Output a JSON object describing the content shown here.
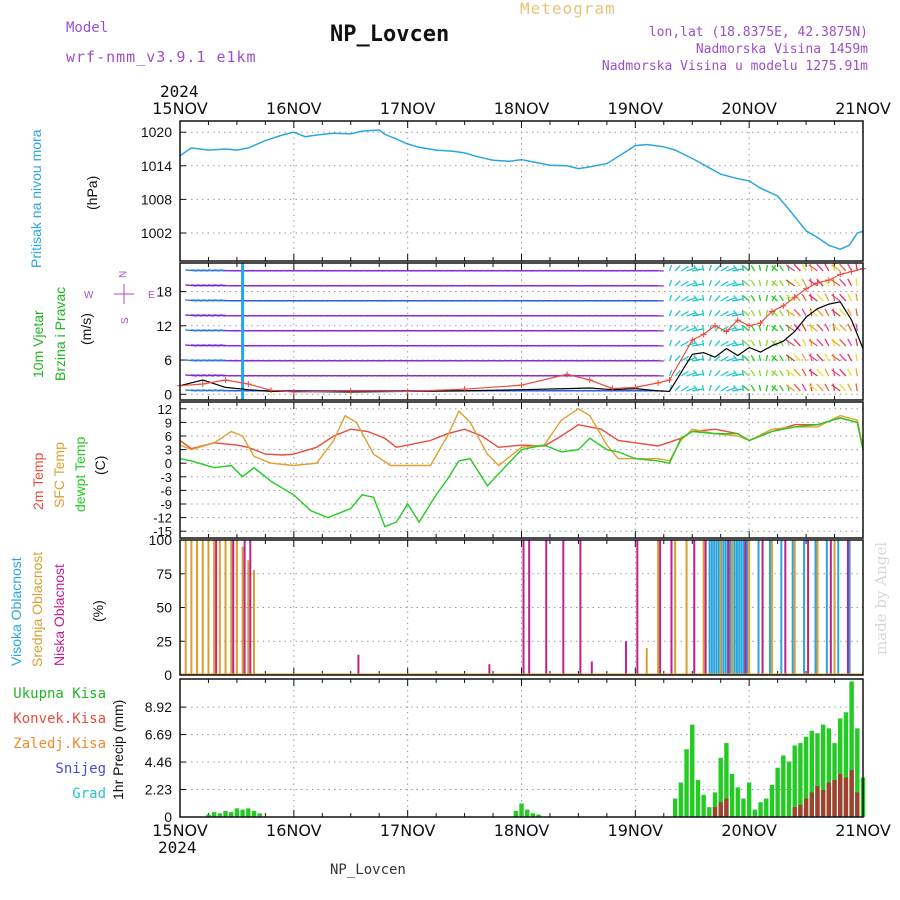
{
  "header": {
    "model_label": "Model",
    "model_name": "wrf-nmm_v3.9.1  e1km",
    "title": "NP_Lovcen",
    "meteogram_label": "Meteogram",
    "lonlat": "lon,lat (18.8375E, 42.3875N)",
    "altitude": "Nadmorska Visina 1459m",
    "model_altitude": "Nadmorska Visina u modelu 1275.91m",
    "year_top": "2024",
    "year_bottom": "2024",
    "footer": "NP_Lovcen",
    "signature": "made by Angel"
  },
  "colors": {
    "pressure": "#2aa6dd",
    "wind_label": "#22b522",
    "temp2m": "#e94b3c",
    "sfc": "#e0a030",
    "dewpt": "#22cc22",
    "high_cloud": "#2aa6dd",
    "mid_cloud": "#d8a030",
    "low_cloud": "#c02090",
    "compass": "#a64ec8",
    "header_purple": "#9b4fc9",
    "header_gold": "#e8c47a"
  },
  "chart_data": [
    {
      "type": "line",
      "panel": "pressure",
      "ylabel_lines": [
        "Pritisak na nivou mora",
        "(hPa)"
      ],
      "ylim": [
        997,
        1022
      ],
      "yticks": [
        "1020",
        "1014",
        "1008",
        "1002"
      ],
      "x_ticks": [
        "15NOV",
        "16NOV",
        "17NOV",
        "18NOV",
        "19NOV",
        "20NOV",
        "21NOV"
      ],
      "x_range_days": [
        0,
        6
      ],
      "series": [
        {
          "x": [
            0,
            0.1,
            0.25,
            0.4,
            0.5,
            0.6,
            0.75,
            0.9,
            1.0,
            1.1,
            1.2,
            1.35,
            1.5,
            1.6,
            1.75,
            1.8,
            1.9,
            2.0,
            2.1,
            2.25,
            2.4,
            2.5,
            2.6,
            2.75,
            2.9,
            3.0,
            3.1,
            3.25,
            3.4,
            3.5,
            3.6,
            3.75,
            3.9,
            4.0,
            4.1,
            4.25,
            4.35,
            4.5,
            4.6,
            4.75,
            4.9,
            5.0,
            5.1,
            5.25,
            5.35,
            5.5,
            5.6,
            5.7,
            5.8,
            5.88,
            5.95,
            6.0
          ],
          "values": [
            1015.8,
            1017.2,
            1016.8,
            1017.0,
            1016.8,
            1017.2,
            1018.5,
            1019.5,
            1020.0,
            1019.2,
            1019.5,
            1019.8,
            1019.7,
            1020.2,
            1020.4,
            1019.6,
            1018.8,
            1017.9,
            1017.3,
            1016.8,
            1016.6,
            1016.3,
            1015.7,
            1015.0,
            1014.8,
            1015.1,
            1014.7,
            1014.1,
            1014.0,
            1013.5,
            1013.8,
            1014.4,
            1016.3,
            1017.6,
            1017.8,
            1017.4,
            1016.8,
            1015.3,
            1014.2,
            1012.5,
            1011.7,
            1011.3,
            1010.0,
            1008.6,
            1006.2,
            1002.4,
            1001.2,
            999.8,
            999.1,
            999.8,
            1002.0,
            1002.3
          ]
        }
      ]
    },
    {
      "type": "line",
      "panel": "wind",
      "ylabel_lines": [
        "10m Vjetar",
        "Brzina i Pravac",
        "(m/s)"
      ],
      "compass": [
        "N",
        "E",
        "S",
        "W"
      ],
      "ylim": [
        -1,
        23
      ],
      "yticks": [
        "18",
        "12",
        "6",
        "0"
      ],
      "series": [
        {
          "name": "",
          "color": "#000000",
          "x": [
            0,
            0.2,
            0.4,
            0.6,
            0.8,
            1.0,
            1.5,
            2.0,
            2.5,
            3.0,
            3.4,
            3.6,
            3.8,
            4.0,
            4.2,
            4.3,
            4.5,
            4.6,
            4.7,
            4.8,
            4.9,
            5.0,
            5.1,
            5.2,
            5.3,
            5.4,
            5.5,
            5.6,
            5.7,
            5.8,
            5.9,
            6.0
          ],
          "values": [
            1.5,
            2.5,
            1.2,
            0.8,
            0.5,
            0.5,
            0.4,
            0.5,
            0.6,
            0.8,
            1.0,
            1.1,
            0.8,
            1.0,
            0.6,
            0.5,
            7.0,
            7.3,
            6.5,
            8.0,
            6.8,
            8.2,
            7.4,
            8.5,
            9.3,
            11.0,
            13.5,
            15.0,
            15.8,
            16.2,
            13.0,
            8.0
          ]
        },
        {
          "name": "",
          "color": "#e94b3c",
          "x": [
            0,
            0.2,
            0.4,
            0.6,
            0.8,
            1.0,
            1.5,
            2.0,
            2.5,
            3.0,
            3.4,
            3.6,
            3.8,
            4.0,
            4.2,
            4.3,
            4.5,
            4.6,
            4.7,
            4.8,
            4.9,
            5.0,
            5.1,
            5.2,
            5.3,
            5.4,
            5.5,
            5.6,
            5.7,
            5.8,
            5.9,
            6.0
          ],
          "values": [
            1.5,
            1.8,
            2.5,
            1.8,
            0.7,
            0.4,
            0.6,
            0.5,
            0.9,
            1.6,
            3.5,
            2.5,
            1.0,
            1.2,
            2.0,
            2.5,
            9.5,
            10.5,
            12.0,
            11.0,
            13.0,
            12.0,
            12.5,
            14.5,
            15.5,
            17.0,
            18.5,
            19.5,
            20.0,
            21.0,
            21.5,
            22.0
          ]
        }
      ]
    },
    {
      "type": "line",
      "panel": "temperature",
      "ylabel_lines": [
        "2m Temp",
        "SFC Temp",
        "dewpt Temp",
        "(C)"
      ],
      "ylim": [
        -16.5,
        13.5
      ],
      "yticks": [
        "12",
        "9",
        "6",
        "3",
        "0",
        "-3",
        "-6",
        "-9",
        "-12",
        "-15"
      ],
      "series": [
        {
          "name": "2m Temp",
          "color": "#e94b3c",
          "x": [
            0,
            0.1,
            0.3,
            0.5,
            0.6,
            0.75,
            0.9,
            1.0,
            1.2,
            1.35,
            1.5,
            1.65,
            1.8,
            1.9,
            2.0,
            2.2,
            2.35,
            2.5,
            2.65,
            2.8,
            3.0,
            3.2,
            3.35,
            3.5,
            3.7,
            3.85,
            4.0,
            4.2,
            4.4,
            4.5,
            4.7,
            4.9,
            5.0,
            5.2,
            5.4,
            5.6,
            5.8,
            5.95,
            6.0
          ],
          "values": [
            5,
            3.2,
            4.5,
            4.0,
            3.5,
            2.0,
            1.8,
            2.0,
            3.5,
            6.0,
            7.5,
            7.0,
            5.5,
            3.5,
            4.0,
            5.0,
            6.5,
            7.5,
            6.0,
            3.5,
            4.0,
            3.8,
            6.0,
            8.5,
            7.5,
            5.0,
            4.5,
            3.8,
            5.5,
            7.0,
            7.5,
            6.5,
            5.0,
            7.0,
            8.5,
            8.5,
            10.0,
            9.0,
            3.0
          ]
        },
        {
          "name": "SFC Temp",
          "color": "#e0a030",
          "x": [
            0,
            0.1,
            0.3,
            0.45,
            0.55,
            0.65,
            0.8,
            1.0,
            1.2,
            1.35,
            1.45,
            1.55,
            1.7,
            1.85,
            2.0,
            2.2,
            2.35,
            2.45,
            2.55,
            2.7,
            2.8,
            3.0,
            3.2,
            3.35,
            3.5,
            3.6,
            3.75,
            3.85,
            4.0,
            4.2,
            4.3,
            4.4,
            4.5,
            4.7,
            4.9,
            5.0,
            5.2,
            5.4,
            5.6,
            5.8,
            5.95,
            6.0
          ],
          "values": [
            4,
            3.0,
            4.5,
            7.0,
            6.0,
            1.5,
            0.0,
            -0.5,
            0.0,
            5.0,
            10.5,
            9.0,
            2.0,
            -0.5,
            -0.5,
            -0.5,
            6.0,
            11.5,
            9.0,
            2.0,
            -0.5,
            3.5,
            4.0,
            9.5,
            12.0,
            10.5,
            4.0,
            1.0,
            1.0,
            1.0,
            0.5,
            5.0,
            7.5,
            6.5,
            6.0,
            5.0,
            7.5,
            8.0,
            8.0,
            10.5,
            9.5,
            3.5
          ]
        },
        {
          "name": "dewpt Temp",
          "color": "#22cc22",
          "x": [
            0,
            0.1,
            0.3,
            0.45,
            0.55,
            0.65,
            0.8,
            1.0,
            1.15,
            1.3,
            1.5,
            1.6,
            1.7,
            1.8,
            1.9,
            2.0,
            2.1,
            2.25,
            2.35,
            2.45,
            2.55,
            2.7,
            2.85,
            3.0,
            3.2,
            3.35,
            3.5,
            3.6,
            3.75,
            3.85,
            4.0,
            4.2,
            4.3,
            4.4,
            4.5,
            4.7,
            4.9,
            5.0,
            5.2,
            5.4,
            5.6,
            5.8,
            5.95,
            6.0
          ],
          "values": [
            1.0,
            0.5,
            -1.0,
            -0.5,
            -3.0,
            -1.0,
            -4.0,
            -7.0,
            -10.5,
            -12.0,
            -10.0,
            -7.0,
            -7.5,
            -14.0,
            -13.0,
            -9.0,
            -13.0,
            -7.0,
            -3.5,
            0.5,
            1.0,
            -5.0,
            -1.0,
            3.0,
            4.0,
            2.5,
            3.0,
            5.5,
            3.0,
            2.5,
            1.0,
            0.5,
            0.0,
            5.5,
            7.0,
            6.5,
            6.5,
            5.0,
            7.0,
            8.0,
            8.5,
            10.0,
            9.0,
            3.0
          ]
        }
      ]
    },
    {
      "type": "bar",
      "panel": "cloud",
      "ylabel_lines": [
        "Visoka Oblacnost",
        "Srednja Oblacnost",
        "Niska Oblacnost",
        "(%)"
      ],
      "ylim": [
        0,
        100
      ],
      "yticks": [
        "100",
        "75",
        "50",
        "25",
        "0"
      ],
      "series": [
        {
          "name": "Visoka Oblacnost",
          "color": "#2aa6dd",
          "x": [
            4.67,
            4.69,
            4.71,
            4.73,
            4.75,
            4.77,
            4.79,
            4.81,
            4.83,
            4.85,
            4.87,
            4.89,
            4.91,
            4.93,
            4.95,
            4.97,
            5.0,
            5.1,
            5.2,
            5.3,
            5.4,
            5.5,
            5.6,
            5.7,
            5.8,
            5.9
          ],
          "values": [
            100,
            100,
            100,
            100,
            100,
            100,
            100,
            100,
            100,
            100,
            100,
            100,
            100,
            100,
            100,
            100,
            100,
            100,
            100,
            100,
            100,
            100,
            100,
            100,
            100,
            100
          ]
        },
        {
          "name": "Srednja Oblacnost",
          "color": "#d8a030",
          "x": [
            0.05,
            0.1,
            0.15,
            0.2,
            0.25,
            0.3,
            0.35,
            0.4,
            0.45,
            0.5,
            0.55,
            0.6,
            0.65,
            4.1,
            4.2,
            4.35,
            4.45,
            4.6,
            4.75,
            4.85,
            5.0,
            5.2,
            5.4,
            5.6,
            5.75
          ],
          "values": [
            100,
            100,
            100,
            100,
            100,
            100,
            100,
            100,
            100,
            100,
            95,
            85,
            78,
            20,
            100,
            100,
            100,
            100,
            100,
            100,
            100,
            100,
            100,
            100,
            100
          ]
        },
        {
          "name": "Niska Oblacnost",
          "color": "#c02090",
          "x": [
            0.3,
            0.45,
            0.55,
            0.6,
            1.55,
            2.7,
            3.0,
            3.05,
            3.2,
            3.35,
            3.5,
            3.6,
            3.9,
            4.0,
            4.2,
            4.3,
            4.5,
            4.6,
            4.8,
            4.95,
            5.1,
            5.3,
            5.5,
            5.7,
            5.85
          ],
          "values": [
            100,
            100,
            100,
            100,
            15,
            8,
            100,
            100,
            100,
            100,
            100,
            10,
            25,
            100,
            100,
            100,
            100,
            100,
            100,
            100,
            100,
            100,
            100,
            100,
            100
          ]
        }
      ]
    },
    {
      "type": "bar",
      "panel": "precip",
      "ylabel": "1hr Precip (mm)",
      "ylim": [
        0,
        11.2
      ],
      "yticks": [
        "8.92",
        "6.69",
        "4.46",
        "2.23",
        "0"
      ],
      "legend": [
        "Ukupna Kisa",
        "Konvek.Kisa",
        "Zaledj.Kisa",
        "Snijeg",
        "Grad"
      ],
      "legend_colors": [
        "#22b522",
        "#e94b3c",
        "#f08a30",
        "#4a4ad8",
        "#2ac4c4"
      ],
      "series": [
        {
          "name": "Ukupna Kisa",
          "color": "#22cc22",
          "x": [
            0.25,
            0.3,
            0.35,
            0.4,
            0.45,
            0.5,
            0.55,
            0.6,
            0.65,
            0.7,
            2.95,
            3.0,
            3.05,
            3.1,
            3.15,
            4.35,
            4.4,
            4.45,
            4.5,
            4.55,
            4.6,
            4.65,
            4.7,
            4.75,
            4.8,
            4.85,
            4.9,
            4.95,
            5.0,
            5.05,
            5.1,
            5.15,
            5.2,
            5.25,
            5.3,
            5.35,
            5.4,
            5.45,
            5.5,
            5.55,
            5.6,
            5.65,
            5.7,
            5.75,
            5.8,
            5.85,
            5.9,
            5.95,
            6.0
          ],
          "values": [
            0.2,
            0.4,
            0.3,
            0.5,
            0.4,
            0.7,
            0.6,
            0.7,
            0.5,
            0.3,
            0.5,
            1.1,
            0.6,
            0.3,
            0.2,
            1.5,
            2.8,
            5.5,
            7.5,
            3.0,
            1.8,
            0.8,
            2.0,
            4.8,
            6.0,
            3.5,
            2.4,
            1.5,
            2.8,
            0.6,
            1.2,
            1.5,
            2.6,
            4.0,
            5.0,
            4.5,
            5.8,
            6.0,
            6.5,
            7.0,
            6.8,
            7.5,
            7.2,
            6.0,
            8.0,
            8.5,
            11.0,
            7.2,
            3.2
          ]
        },
        {
          "name": "Konvek.Kisa",
          "color": "#a04030",
          "x": [
            4.7,
            4.75,
            4.8,
            5.4,
            5.45,
            5.5,
            5.55,
            5.6,
            5.65,
            5.7,
            5.75,
            5.8,
            5.85,
            5.9,
            5.95
          ],
          "values": [
            0.8,
            1.2,
            1.5,
            0.8,
            1.0,
            1.5,
            2.0,
            2.5,
            2.2,
            2.8,
            3.0,
            3.5,
            3.2,
            3.8,
            2.0
          ]
        }
      ]
    }
  ]
}
